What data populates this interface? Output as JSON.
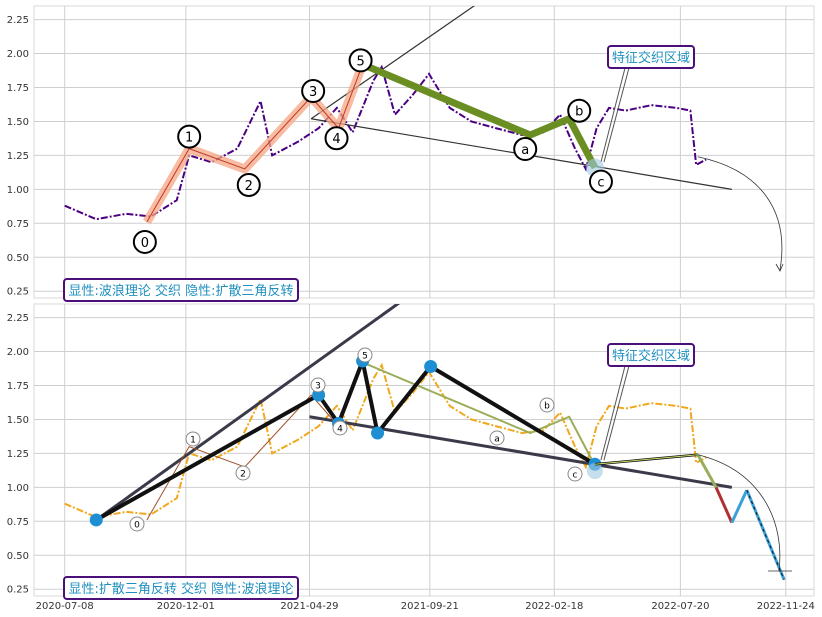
{
  "chart_data": [
    {
      "type": "line",
      "panel": "top",
      "title": "",
      "xlabel": "",
      "ylabel": "",
      "ylim": [
        0.2,
        2.35
      ],
      "y_ticks": [
        "0.25",
        "0.50",
        "0.75",
        "1.00",
        "1.25",
        "1.50",
        "1.75",
        "2.00",
        "2.25"
      ],
      "grid": true,
      "series": [
        {
          "color": "#4b0082",
          "style": "dash-dot",
          "x": [
            "2020-07-08",
            "2020-08-15",
            "2020-09-20",
            "2020-10-20",
            "2020-11-20",
            "2020-12-05",
            "2021-01-01",
            "2021-02-01",
            "2021-03-01",
            "2021-03-15",
            "2021-04-15",
            "2021-05-10",
            "2021-06-01",
            "2021-06-20",
            "2021-07-15",
            "2021-07-25",
            "2021-08-10",
            "2021-09-01",
            "2021-09-20",
            "2021-10-15",
            "2021-11-10",
            "2021-12-10",
            "2022-01-10",
            "2022-02-05",
            "2022-02-25",
            "2022-03-15",
            "2022-03-28",
            "2022-04-10",
            "2022-04-25",
            "2022-05-15",
            "2022-06-15",
            "2022-07-15",
            "2022-08-01",
            "2022-08-08",
            "2022-08-20"
          ],
          "y": [
            0.88,
            0.78,
            0.82,
            0.8,
            0.92,
            1.25,
            1.2,
            1.3,
            1.65,
            1.25,
            1.35,
            1.45,
            1.6,
            1.42,
            1.8,
            1.9,
            1.55,
            1.7,
            1.85,
            1.6,
            1.5,
            1.45,
            1.4,
            1.42,
            1.55,
            1.3,
            1.15,
            1.45,
            1.6,
            1.58,
            1.62,
            1.6,
            1.58,
            1.18,
            1.22
          ]
        }
      ],
      "wave_points": [
        {
          "label": "0",
          "x": "2020-10-15",
          "y": 0.76
        },
        {
          "label": "1",
          "x": "2020-12-05",
          "y": 1.3
        },
        {
          "label": "2",
          "x": "2021-02-10",
          "y": 1.15
        },
        {
          "label": "3",
          "x": "2021-05-01",
          "y": 1.68
        },
        {
          "label": "4",
          "x": "2021-06-03",
          "y": 1.45
        },
        {
          "label": "5",
          "x": "2021-07-02",
          "y": 1.92
        },
        {
          "label": "a",
          "x": "2022-01-20",
          "y": 1.4
        },
        {
          "label": "b",
          "x": "2022-03-08",
          "y": 1.52
        },
        {
          "label": "c",
          "x": "2022-04-08",
          "y": 1.16
        }
      ],
      "wave_impulse_color": "#f4a582",
      "wave_corrective_color": "#6b8e23",
      "trend_lines": [
        {
          "x1": "2021-05-01",
          "y1": 1.52,
          "x2": "2021-11-25",
          "y2": 2.4
        },
        {
          "x1": "2021-05-01",
          "y1": 1.52,
          "x2": "2022-09-20",
          "y2": 1.0
        }
      ],
      "annotations": [
        "特征交织区域"
      ],
      "caption": "显性:波浪理论 交织 隐性:扩散三角反转"
    },
    {
      "type": "line",
      "panel": "bottom",
      "title": "",
      "xlabel": "",
      "ylabel": "",
      "ylim": [
        0.2,
        2.35
      ],
      "y_ticks": [
        "0.25",
        "0.50",
        "0.75",
        "1.00",
        "1.25",
        "1.50",
        "1.75",
        "2.00",
        "2.25"
      ],
      "x_ticks": [
        "2020-07-08",
        "2020-12-01",
        "2021-04-29",
        "2021-09-21",
        "2022-02-18",
        "2022-07-20",
        "2022-11-24"
      ],
      "grid": true,
      "series": [
        {
          "color": "#f0a81c",
          "style": "dash-dot",
          "x": [
            "2020-07-08",
            "2020-08-15",
            "2020-09-20",
            "2020-10-20",
            "2020-11-20",
            "2020-12-05",
            "2021-01-01",
            "2021-02-01",
            "2021-03-01",
            "2021-03-15",
            "2021-04-15",
            "2021-05-10",
            "2021-06-01",
            "2021-06-20",
            "2021-07-15",
            "2021-07-25",
            "2021-08-10",
            "2021-09-01",
            "2021-09-20",
            "2021-10-15",
            "2021-11-10",
            "2021-12-10",
            "2022-01-10",
            "2022-02-05",
            "2022-02-25",
            "2022-03-15",
            "2022-03-28",
            "2022-04-10",
            "2022-04-25",
            "2022-05-15",
            "2022-06-15",
            "2022-07-15",
            "2022-08-01",
            "2022-08-08",
            "2022-08-20"
          ],
          "y": [
            0.88,
            0.78,
            0.82,
            0.8,
            0.92,
            1.25,
            1.2,
            1.3,
            1.65,
            1.25,
            1.35,
            1.45,
            1.6,
            1.42,
            1.8,
            1.9,
            1.55,
            1.7,
            1.85,
            1.6,
            1.5,
            1.45,
            1.4,
            1.42,
            1.55,
            1.3,
            1.15,
            1.45,
            1.6,
            1.58,
            1.62,
            1.6,
            1.58,
            1.18,
            1.22
          ]
        }
      ],
      "triangle_points": [
        {
          "x": "2020-08-15",
          "y": 0.76
        },
        {
          "x": "2021-05-10",
          "y": 1.68
        },
        {
          "x": "2021-06-03",
          "y": 1.47
        },
        {
          "x": "2021-07-02",
          "y": 1.93
        },
        {
          "x": "2021-07-20",
          "y": 1.4
        },
        {
          "x": "2021-09-22",
          "y": 1.89
        },
        {
          "x": "2022-04-08",
          "y": 1.17
        }
      ],
      "wave_labels": [
        "0",
        "1",
        "2",
        "3",
        "4",
        "5",
        "a",
        "b",
        "c"
      ],
      "projection": [
        {
          "x": "2022-04-08",
          "y": 1.17
        },
        {
          "x": "2022-08-10",
          "y": 1.24
        },
        {
          "x": "2022-09-01",
          "y": 1.0
        },
        {
          "x": "2022-09-20",
          "y": 0.74
        },
        {
          "x": "2022-10-08",
          "y": 0.98
        },
        {
          "x": "2022-11-22",
          "y": 0.32
        }
      ],
      "annotations": [
        "特征交织区域"
      ],
      "caption": "显性:扩散三角反转 交织 隐性:波浪理论"
    }
  ]
}
